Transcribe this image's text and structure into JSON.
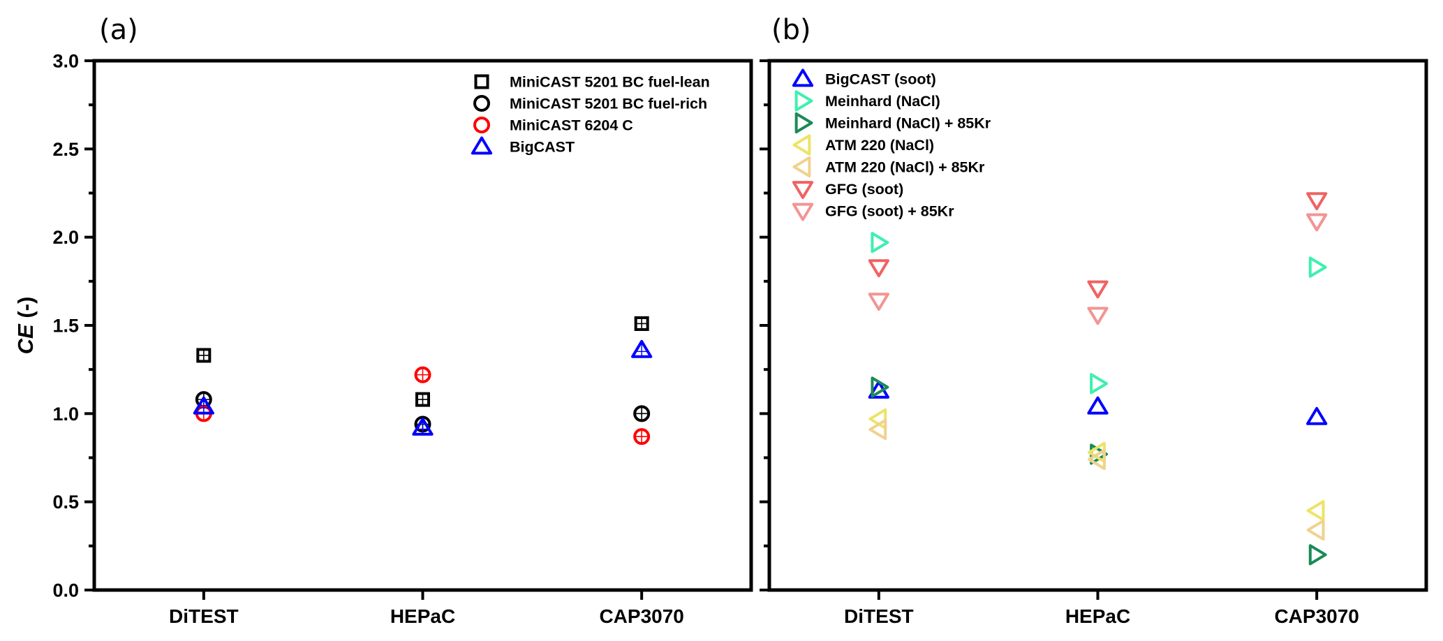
{
  "chart_data": [
    {
      "panel": "(a)",
      "type": "scatter",
      "title": "",
      "xlabel": "",
      "ylabel": "CE (-)",
      "ylabel_italic_part": "CE",
      "ylabel_rest": " (-)",
      "categories": [
        "DiTEST",
        "HEPaC",
        "CAP3070"
      ],
      "ylim": [
        0.0,
        3.0
      ],
      "yticks": [
        "0.0",
        "0.5",
        "1.0",
        "1.5",
        "2.0",
        "2.5",
        "3.0"
      ],
      "grid": false,
      "legend_position": "top-right",
      "series": [
        {
          "name": "MiniCAST 5201 BC fuel-lean",
          "marker": "square",
          "color": "#000000",
          "values": [
            1.33,
            1.08,
            1.51
          ]
        },
        {
          "name": "MiniCAST 5201 BC fuel-rich",
          "marker": "circle",
          "color": "#000000",
          "values": [
            1.08,
            0.94,
            1.0
          ]
        },
        {
          "name": "MiniCAST 6204 C",
          "marker": "circle",
          "color": "#ff0000",
          "values": [
            1.0,
            1.22,
            0.87
          ]
        },
        {
          "name": "BigCAST",
          "marker": "triangle-up",
          "color": "#0000ff",
          "values": [
            1.04,
            0.92,
            1.36
          ]
        }
      ]
    },
    {
      "panel": "(b)",
      "type": "scatter",
      "title": "",
      "xlabel": "",
      "ylabel": "",
      "categories": [
        "DiTEST",
        "HEPaC",
        "CAP3070"
      ],
      "ylim": [
        0.0,
        3.0
      ],
      "grid": false,
      "legend_position": "top-left",
      "series": [
        {
          "name": "BigCAST (soot)",
          "marker": "triangle-up",
          "color": "#0000ff",
          "values": [
            1.13,
            1.04,
            0.98
          ]
        },
        {
          "name": "Meinhard (NaCl)",
          "marker": "triangle-right",
          "color": "#3ef0b0",
          "values": [
            1.97,
            1.17,
            1.83
          ]
        },
        {
          "name": "Meinhard (NaCl) + 85Kr",
          "marker": "triangle-right",
          "color": "#1a8a58",
          "values": [
            1.15,
            0.77,
            0.2
          ]
        },
        {
          "name": "ATM 220 (NaCl)",
          "marker": "triangle-left",
          "color": "#ece466",
          "values": [
            0.97,
            0.78,
            0.45
          ]
        },
        {
          "name": "ATM 220 (NaCl) + 85Kr",
          "marker": "triangle-left",
          "color": "#f0d28e",
          "values": [
            0.91,
            0.74,
            0.34
          ]
        },
        {
          "name": "GFG (soot)",
          "marker": "triangle-down",
          "color": "#f06262",
          "values": [
            1.83,
            1.71,
            2.21
          ]
        },
        {
          "name": "GFG (soot) + 85Kr",
          "marker": "triangle-down",
          "color": "#f39494",
          "values": [
            1.64,
            1.56,
            2.09
          ]
        }
      ]
    }
  ]
}
